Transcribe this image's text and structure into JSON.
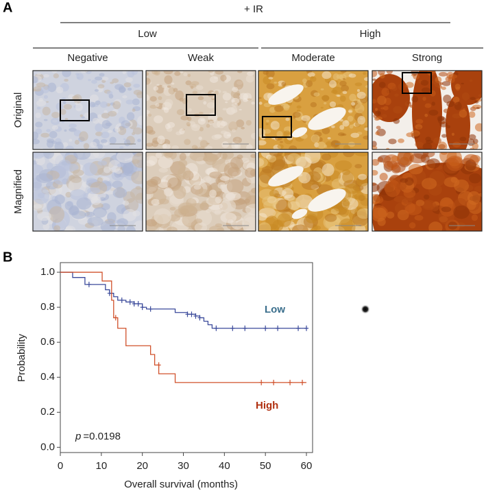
{
  "panel_a": {
    "label": "A",
    "treatment": "+ IR",
    "groups": [
      "Low",
      "High"
    ],
    "columns": [
      "Negative",
      "Weak",
      "Moderate",
      "Strong"
    ],
    "rows": [
      "Original",
      "Magnified"
    ]
  },
  "chart_data": {
    "type": "step",
    "panel_label": "B",
    "x_label": "Overall survival (months)",
    "y_label": "Probability",
    "annotation": {
      "symbol": "p",
      "text": "=0.0198"
    },
    "xlim": [
      0,
      61.5
    ],
    "ylim": [
      -0.03,
      1.055
    ],
    "xticks": [
      0,
      10,
      20,
      30,
      40,
      50,
      60
    ],
    "yticks": [
      {
        "value": 0,
        "label": "0.0"
      },
      0.2,
      0.4,
      0.6,
      0.8,
      {
        "value": 1,
        "label": "1.0"
      }
    ],
    "series": [
      {
        "name": "Low",
        "color": "#3b4a9b",
        "label_color": "#3a6e8c",
        "x": [
          0,
          3,
          6,
          11,
          12,
          13,
          14,
          16,
          18,
          20,
          21,
          28,
          31,
          33,
          34,
          35,
          36,
          37,
          60
        ],
        "values": [
          1.0,
          0.97,
          0.93,
          0.9,
          0.88,
          0.86,
          0.84,
          0.83,
          0.82,
          0.8,
          0.79,
          0.77,
          0.76,
          0.75,
          0.74,
          0.72,
          0.7,
          0.68,
          0.68
        ],
        "censored": {
          "x": [
            7,
            12,
            15,
            17,
            18,
            19,
            20,
            22,
            31,
            32,
            33,
            34,
            38,
            42,
            45,
            50,
            53,
            58,
            60
          ],
          "y": [
            0.93,
            0.88,
            0.84,
            0.83,
            0.82,
            0.82,
            0.8,
            0.79,
            0.76,
            0.76,
            0.75,
            0.74,
            0.68,
            0.68,
            0.68,
            0.68,
            0.68,
            0.68,
            0.68
          ]
        }
      },
      {
        "name": "High",
        "color": "#d0502a",
        "label_color": "#b03010",
        "x": [
          0,
          10.2,
          12.5,
          13,
          14,
          16,
          22,
          23,
          24,
          28,
          60
        ],
        "values": [
          1.0,
          0.95,
          0.84,
          0.74,
          0.68,
          0.58,
          0.53,
          0.47,
          0.42,
          0.37,
          0.37
        ],
        "censored": {
          "x": [
            13.5,
            24,
            49,
            52,
            56,
            59
          ],
          "y": [
            0.74,
            0.47,
            0.37,
            0.37,
            0.37,
            0.37
          ]
        }
      }
    ]
  }
}
